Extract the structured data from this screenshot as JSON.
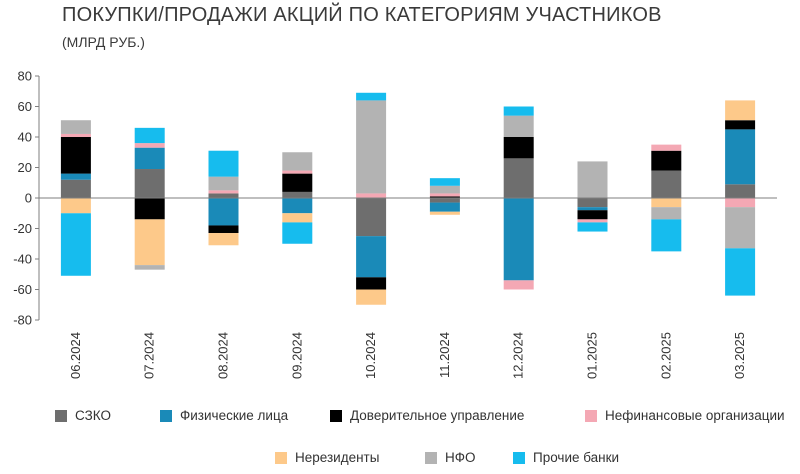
{
  "header": {
    "title": "ПОКУПКИ/ПРОДАЖИ АКЦИЙ ПО КАТЕГОРИЯМ УЧАСТНИКОВ",
    "subtitle": "(МЛРД РУБ.)"
  },
  "chart_data": {
    "type": "bar",
    "stacked": true,
    "categories": [
      "06.2024",
      "07.2024",
      "08.2024",
      "09.2024",
      "10.2024",
      "11.2024",
      "12.2024",
      "01.2025",
      "02.2025",
      "03.2025"
    ],
    "ylim": [
      -80,
      80
    ],
    "yticks": [
      -80,
      -60,
      -40,
      -20,
      0,
      20,
      40,
      60,
      80
    ],
    "grid": false,
    "legend_position": "bottom",
    "series": [
      {
        "name": "СЗКО",
        "color": "#6e6e6e",
        "values": [
          12,
          19,
          3,
          4,
          -25,
          -3,
          26,
          -6,
          18,
          9
        ]
      },
      {
        "name": "Физические лица",
        "color": "#1a8ab8",
        "values": [
          4,
          14,
          -18,
          -10,
          -27,
          -6,
          -54,
          -2,
          0,
          36
        ]
      },
      {
        "name": "Доверительное управление",
        "color": "#000000",
        "values": [
          24,
          -14,
          -5,
          12,
          -8,
          1,
          14,
          -6,
          13,
          6
        ]
      },
      {
        "name": "Нефинансовые организации",
        "color": "#f4a8b4",
        "values": [
          2,
          3,
          2,
          2,
          3,
          2,
          -6,
          -2,
          4,
          -6
        ]
      },
      {
        "name": "Нерезиденты",
        "color": "#fdc98a",
        "values": [
          -10,
          -30,
          -8,
          -6,
          -10,
          -2,
          0,
          0,
          -6,
          13
        ]
      },
      {
        "name": "НФО",
        "color": "#b3b3b3",
        "values": [
          9,
          -3,
          9,
          12,
          61,
          5,
          14,
          24,
          -8,
          -27
        ]
      },
      {
        "name": "Прочие банки",
        "color": "#16bcee",
        "values": [
          -41,
          10,
          17,
          -14,
          5,
          5,
          6,
          -6,
          -21,
          -31
        ]
      }
    ]
  }
}
